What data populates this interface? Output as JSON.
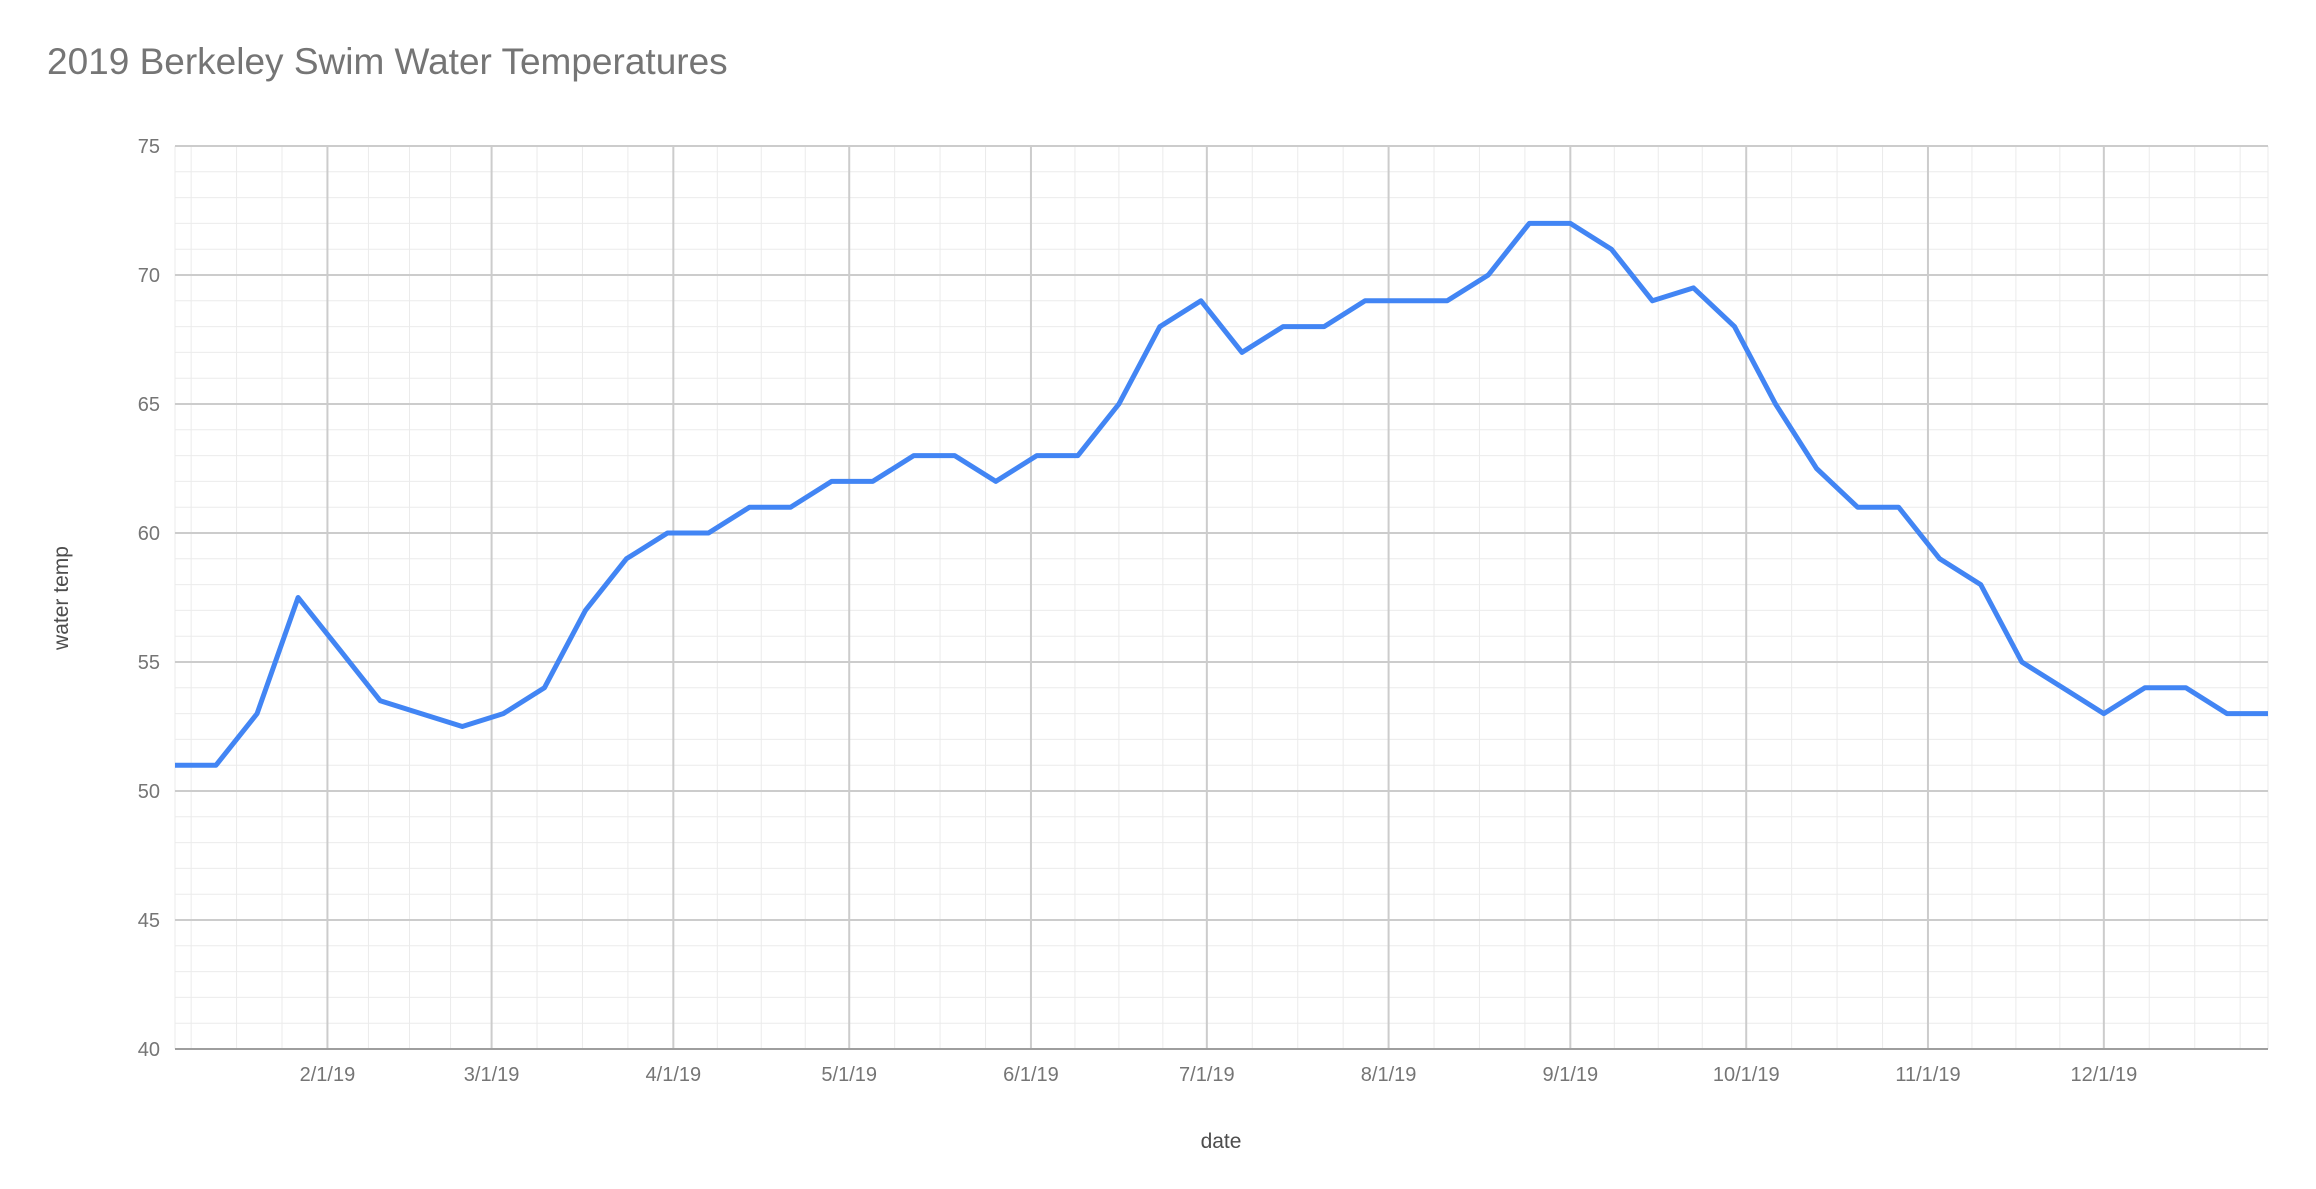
{
  "page": {
    "background": "#ffffff"
  },
  "chart_data": {
    "type": "line",
    "title": "2019 Berkeley Swim Water Temperatures",
    "xlabel": "date",
    "ylabel": "water temp",
    "legend": "none",
    "grid": "major and minor gridlines on",
    "ylim": [
      40,
      75
    ],
    "y_major_step": 5,
    "y_minor_step": 1,
    "y_ticks": [
      40,
      45,
      50,
      55,
      60,
      65,
      70,
      75
    ],
    "x_tick_labels": [
      "2/1/19",
      "3/1/19",
      "4/1/19",
      "5/1/19",
      "6/1/19",
      "7/1/19",
      "8/1/19",
      "9/1/19",
      "10/1/19",
      "11/1/19",
      "12/1/19"
    ],
    "x_range": [
      "1/6/19",
      "12/29/19"
    ],
    "series": [
      {
        "name": "water temp",
        "dates": [
          "1/6/19",
          "1/13/19",
          "1/20/19",
          "1/27/19",
          "2/3/19",
          "2/10/19",
          "2/17/19",
          "2/24/19",
          "3/3/19",
          "3/10/19",
          "3/17/19",
          "3/24/19",
          "3/31/19",
          "4/7/19",
          "4/14/19",
          "4/21/19",
          "4/28/19",
          "5/5/19",
          "5/12/19",
          "5/19/19",
          "5/26/19",
          "6/2/19",
          "6/9/19",
          "6/16/19",
          "6/23/19",
          "6/30/19",
          "7/7/19",
          "7/14/19",
          "7/21/19",
          "7/28/19",
          "8/4/19",
          "8/11/19",
          "8/18/19",
          "8/25/19",
          "9/1/19",
          "9/8/19",
          "9/15/19",
          "9/22/19",
          "9/29/19",
          "10/6/19",
          "10/13/19",
          "10/20/19",
          "10/27/19",
          "11/3/19",
          "11/10/19",
          "11/17/19",
          "11/24/19",
          "12/1/19",
          "12/8/19",
          "12/15/19",
          "12/22/19",
          "12/29/19"
        ],
        "values": [
          51,
          51,
          53,
          57.5,
          55.5,
          53.5,
          53,
          52.5,
          53,
          54,
          57,
          59,
          60,
          60,
          61,
          61,
          62,
          62,
          63,
          63,
          62,
          63,
          63,
          65,
          68,
          69,
          67,
          68,
          68,
          69,
          69,
          69,
          70,
          72,
          72,
          71,
          69,
          69.5,
          68,
          65,
          62.5,
          61,
          61,
          59,
          58,
          55,
          54,
          53,
          54,
          54,
          53,
          53
        ]
      }
    ],
    "colors": {
      "line": "#4285f4",
      "gridline_major": "#cccccc",
      "gridline_minor": "#ebebeb",
      "axis_baseline": "#9e9e9e",
      "tick_label": "#757575",
      "title": "#757575",
      "axis_title": "#4d4d4d",
      "background": "#ffffff"
    }
  }
}
